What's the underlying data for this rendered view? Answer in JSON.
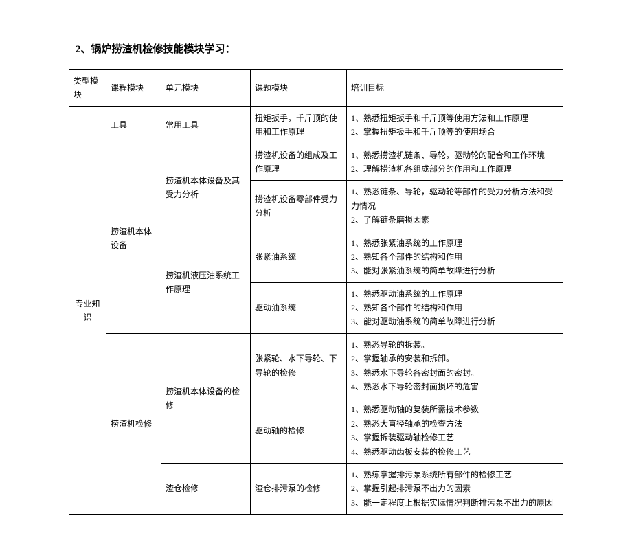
{
  "title": "2、锅炉捞渣机检修技能模块学习：",
  "headers": {
    "type": "类型模块",
    "course": "课程模块",
    "unit": "单元模块",
    "topic": "课题模块",
    "goal": "培训目标"
  },
  "type_module": "专业知识",
  "courses": [
    {
      "name": "工具",
      "units": [
        {
          "name": "常用工具",
          "topics": [
            {
              "name": "扭矩扳手，千斤顶的使用和工作原理",
              "goals": [
                "1、熟悉扭矩扳手和千斤顶等使用方法和工作原理",
                "2、掌握扭矩扳手和千斤顶等的使用场合"
              ]
            }
          ]
        }
      ]
    },
    {
      "name": "捞渣机本体  设备",
      "units": [
        {
          "name": "捞渣机本体设备及其受力分析",
          "topics": [
            {
              "name": "捞渣机设备的组成及工作原理",
              "goals": [
                "1、熟悉捞渣机链条、导轮，驱动轮的配合和工作环境",
                "2、理解捞渣机各组成部分的作用和工作原理"
              ]
            },
            {
              "name": "捞渣机设备零部件受力分析",
              "goals": [
                "1、熟悉链条、导轮，驱动轮等部件的受力分析方法和受力情况",
                "2、了解链条磨损因素"
              ]
            }
          ]
        },
        {
          "name": "捞渣机液压油系统工作原理",
          "topics": [
            {
              "name": "张紧油系统",
              "goals": [
                "1、熟悉张紧油系统的工作原理",
                "2、熟知各个部件的结构和作用",
                "3、能对张紧油系统的简单故障进行分析"
              ]
            },
            {
              "name": "驱动油系统",
              "goals": [
                "1、熟悉驱动油系统的工作原理",
                "2、熟知各个部件的结构和作用",
                "3、能对驱动油系统的简单故障进行分析"
              ]
            }
          ]
        }
      ]
    },
    {
      "name": "捞渣机检修",
      "units": [
        {
          "name": "捞渣机本体设备的检修",
          "topics": [
            {
              "name": "张紧轮、水下导轮、下导轮的检修",
              "goals": [
                "1、熟悉导轮的拆装。",
                "2、掌握轴承的安装和拆卸。",
                "3、熟悉水下导轮各密封面的密封。",
                "4、熟悉水下导轮密封面损坏的危害"
              ]
            },
            {
              "name": "驱动轴的检修",
              "goals": [
                "1、熟悉驱动轴的复装所需技术参数",
                "2、熟悉大直径轴承的检查方法",
                "3、掌握拆装驱动轴检修工艺",
                "4、熟悉驱动齿板安装的检修工艺"
              ]
            }
          ]
        },
        {
          "name": "渣仓检修",
          "topics": [
            {
              "name": "渣仓排污泵的检修",
              "goals": [
                "1、熟练掌握排污泵系统所有部件的检修工艺",
                "2、掌握引起排污泵不出力的因素",
                "3、能一定程度上根据实际情况判断排污泵不出力的原因"
              ]
            }
          ]
        }
      ]
    }
  ]
}
